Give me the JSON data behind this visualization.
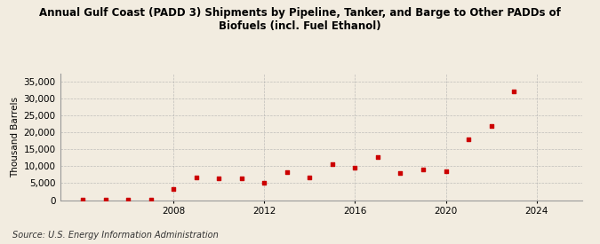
{
  "title": "Annual Gulf Coast (PADD 3) Shipments by Pipeline, Tanker, and Barge to Other PADDs of\nBiofuels (incl. Fuel Ethanol)",
  "ylabel": "Thousand Barrels",
  "source": "Source: U.S. Energy Information Administration",
  "background_color": "#f2ece0",
  "marker_color": "#cc0000",
  "years": [
    2004,
    2005,
    2006,
    2007,
    2008,
    2009,
    2010,
    2011,
    2012,
    2013,
    2014,
    2015,
    2016,
    2017,
    2018,
    2019,
    2020,
    2021,
    2022,
    2023
  ],
  "values": [
    50,
    200,
    100,
    50,
    3200,
    6800,
    6300,
    6500,
    5100,
    8200,
    6700,
    10500,
    9700,
    12700,
    7900,
    9000,
    8500,
    18000,
    22000,
    32000
  ],
  "xlim": [
    2003,
    2026
  ],
  "ylim": [
    0,
    37500
  ],
  "yticks": [
    0,
    5000,
    10000,
    15000,
    20000,
    25000,
    30000,
    35000
  ],
  "xticks": [
    2008,
    2012,
    2016,
    2020,
    2024
  ],
  "grid_color": "#aaaaaa",
  "title_fontsize": 8.5,
  "axis_fontsize": 7.5,
  "source_fontsize": 7.0
}
